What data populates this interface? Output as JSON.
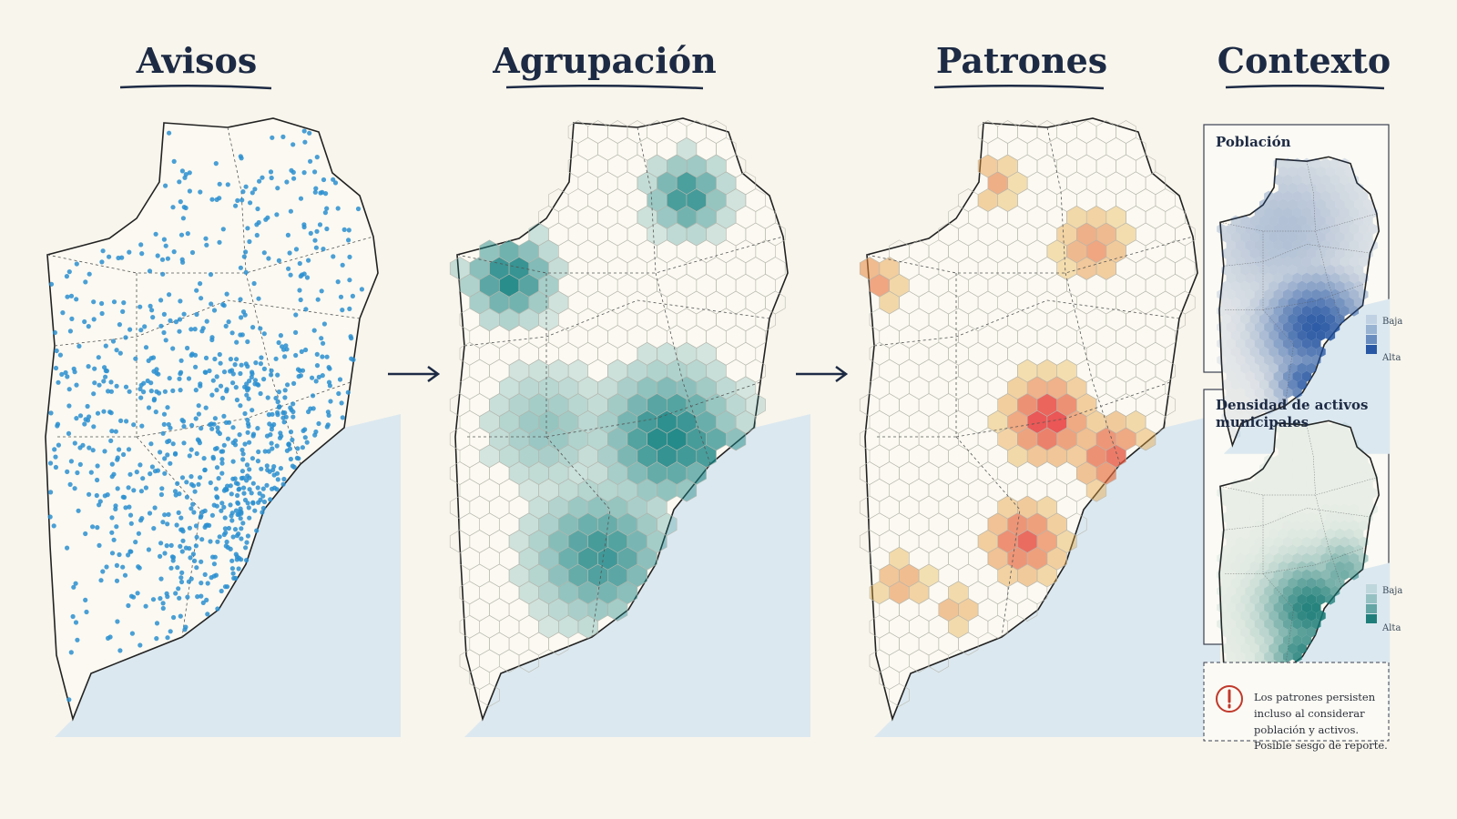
{
  "panels": [
    {
      "title": "Avisos"
    },
    {
      "title": "Agrupación"
    },
    {
      "title": "Patrones"
    },
    {
      "title": "Contexto"
    }
  ],
  "context": {
    "population": {
      "title": "Población",
      "low": "Baja",
      "high": "Alta"
    },
    "assets": {
      "title_line1": "Densidad de activos",
      "title_line2": "municipales",
      "low": "Baja",
      "high": "Alta"
    }
  },
  "note": {
    "text": "Los patrones persisten incluso al considerar población y activos. Posible sesgo de reporte."
  }
}
